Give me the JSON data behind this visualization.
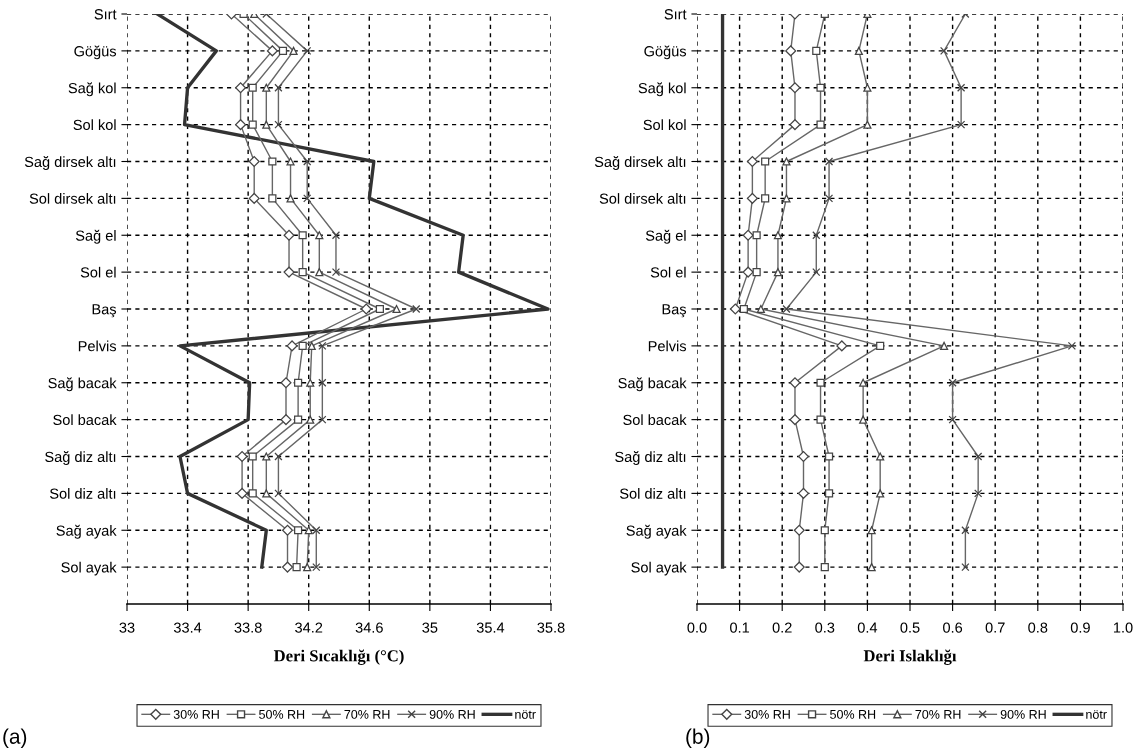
{
  "chart_data": [
    {
      "type": "line",
      "orientation": "horizontal",
      "xlabel": "Deri Sıcaklığı (°C)",
      "categories": [
        "Sırt",
        "Göğüs",
        "Sağ kol",
        "Sol kol",
        "Sağ dirsek altı",
        "Sol dirsek altı",
        "Sağ el",
        "Sol el",
        "Baş",
        "Pelvis",
        "Sağ bacak",
        "Sol bacak",
        "Sağ diz altı",
        "Sol diz altı",
        "Sağ ayak",
        "Sol ayak"
      ],
      "series": [
        {
          "name": "30% RH",
          "color": "#666666",
          "marker": "diamond",
          "values": [
            33.69,
            33.96,
            33.75,
            33.75,
            33.84,
            33.84,
            34.07,
            34.07,
            34.58,
            34.09,
            34.05,
            34.05,
            33.76,
            33.76,
            34.06,
            34.06
          ]
        },
        {
          "name": "50% RH",
          "color": "#666666",
          "marker": "square",
          "values": [
            33.77,
            34.03,
            33.83,
            33.83,
            33.96,
            33.96,
            34.16,
            34.16,
            34.67,
            34.16,
            34.13,
            34.13,
            33.83,
            33.83,
            34.13,
            34.12
          ]
        },
        {
          "name": "70% RH",
          "color": "#666666",
          "marker": "triangle",
          "values": [
            33.84,
            34.1,
            33.92,
            33.92,
            34.08,
            34.08,
            34.27,
            34.27,
            34.78,
            34.22,
            34.21,
            34.21,
            33.92,
            33.92,
            34.2,
            34.19
          ]
        },
        {
          "name": "90% RH",
          "color": "#666666",
          "marker": "cross",
          "values": [
            33.92,
            34.19,
            34.0,
            34.0,
            34.19,
            34.19,
            34.38,
            34.38,
            34.91,
            34.29,
            34.29,
            34.29,
            34.0,
            34.0,
            34.25,
            34.25
          ]
        },
        {
          "name": "nötr",
          "color": "#333333",
          "marker": "none",
          "values": [
            33.2,
            33.59,
            33.4,
            33.38,
            34.63,
            34.6,
            35.22,
            35.19,
            35.78,
            33.35,
            33.81,
            33.8,
            33.35,
            33.4,
            33.92,
            33.89
          ]
        }
      ],
      "xlim": [
        33,
        35.8
      ],
      "xticks": [
        33,
        33.4,
        33.8,
        34.2,
        34.6,
        35,
        35.4,
        35.8
      ],
      "grid": true,
      "legend": "bottom",
      "line_style": "solid",
      "annotations": [
        "(a)"
      ]
    },
    {
      "type": "line",
      "orientation": "horizontal",
      "xlabel": "Deri Islaklığı",
      "categories": [
        "Sırt",
        "Göğüs",
        "Sağ kol",
        "Sol kol",
        "Sağ dirsek altı",
        "Sol dirsek altı",
        "Sağ el",
        "Sol el",
        "Baş",
        "Pelvis",
        "Sağ bacak",
        "Sol bacak",
        "Sağ diz altı",
        "Sol diz altı",
        "Sağ ayak",
        "Sol ayak"
      ],
      "series": [
        {
          "name": "30% RH",
          "color": "#666666",
          "marker": "diamond",
          "values": [
            0.23,
            0.22,
            0.23,
            0.23,
            0.13,
            0.13,
            0.12,
            0.12,
            0.09,
            0.34,
            0.23,
            0.23,
            0.25,
            0.25,
            0.24,
            0.24
          ]
        },
        {
          "name": "50% RH",
          "color": "#666666",
          "marker": "square",
          "values": [
            0.3,
            0.28,
            0.29,
            0.29,
            0.16,
            0.16,
            0.14,
            0.14,
            0.11,
            0.43,
            0.29,
            0.29,
            0.31,
            0.31,
            0.3,
            0.3
          ]
        },
        {
          "name": "70% RH",
          "color": "#666666",
          "marker": "triangle",
          "values": [
            0.4,
            0.38,
            0.4,
            0.4,
            0.21,
            0.21,
            0.19,
            0.19,
            0.15,
            0.58,
            0.39,
            0.39,
            0.43,
            0.43,
            0.41,
            0.41
          ]
        },
        {
          "name": "90% RH",
          "color": "#666666",
          "marker": "cross",
          "values": [
            0.63,
            0.58,
            0.62,
            0.62,
            0.31,
            0.31,
            0.28,
            0.28,
            0.21,
            0.88,
            0.6,
            0.6,
            0.66,
            0.66,
            0.63,
            0.63
          ]
        },
        {
          "name": "nötr",
          "color": "#333333",
          "marker": "none",
          "values": [
            0.06,
            0.06,
            0.06,
            0.06,
            0.06,
            0.06,
            0.06,
            0.06,
            0.06,
            0.06,
            0.06,
            0.06,
            0.06,
            0.06,
            0.06,
            0.06
          ]
        }
      ],
      "xlim": [
        0.0,
        1.0
      ],
      "xticks": [
        {
          "value": 0,
          "label": "0.0"
        },
        {
          "value": 0.1,
          "label": "0.1"
        },
        {
          "value": 0.2,
          "label": "0.2"
        },
        {
          "value": 0.3,
          "label": "0.3"
        },
        {
          "value": 0.4,
          "label": "0.4"
        },
        {
          "value": 0.5,
          "label": "0.5"
        },
        {
          "value": 0.6,
          "label": "0.6"
        },
        {
          "value": 0.7,
          "label": "0.7"
        },
        {
          "value": 0.8,
          "label": "0.8"
        },
        {
          "value": 0.9,
          "label": "0.9"
        },
        {
          "value": 1,
          "label": "1.0"
        }
      ],
      "grid": true,
      "legend": "bottom",
      "line_style": "solid",
      "annotations": [
        "(b)"
      ]
    }
  ]
}
